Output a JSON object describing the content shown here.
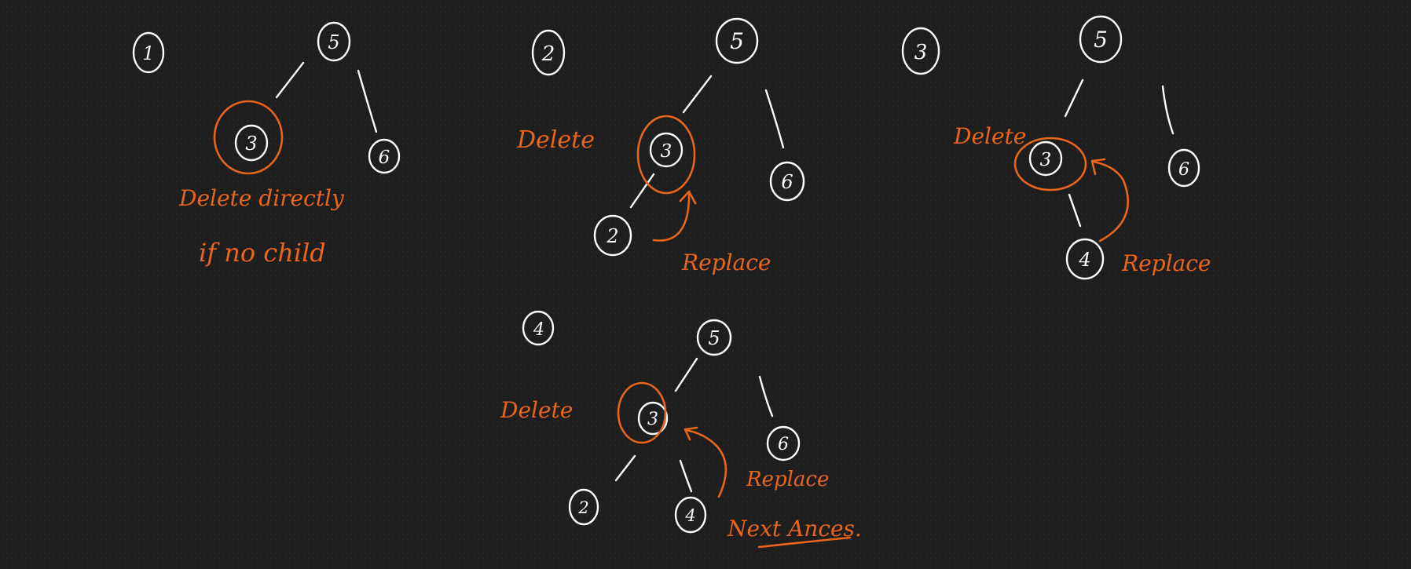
{
  "colors": {
    "background": "#1e1e1e",
    "ink_white": "#ffffff",
    "ink_orange": "#e8651a"
  },
  "step_numbers": [
    "1",
    "2",
    "3",
    "4"
  ],
  "diagram1": {
    "nodes": [
      "5",
      "3",
      "6"
    ],
    "note_line1": "Delete directly",
    "note_line2": "if no child"
  },
  "diagram2": {
    "nodes": [
      "5",
      "3",
      "6",
      "2"
    ],
    "delete_label": "Delete",
    "replace_label": "Replace"
  },
  "diagram3": {
    "nodes": [
      "5",
      "3",
      "6",
      "4"
    ],
    "delete_label": "Delete",
    "replace_label": "Replace"
  },
  "diagram4": {
    "nodes": [
      "5",
      "3",
      "6",
      "2",
      "4"
    ],
    "delete_label": "Delete",
    "replace_label": "Replace",
    "note": "Next Ances."
  }
}
